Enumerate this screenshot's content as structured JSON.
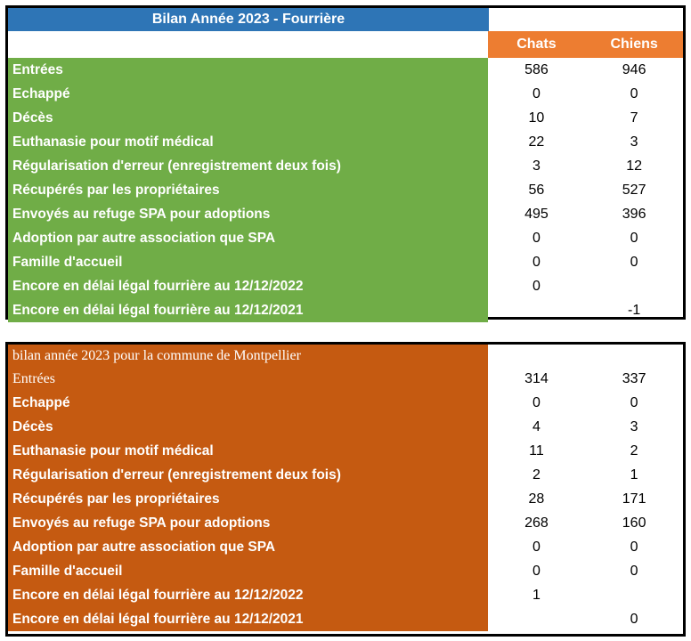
{
  "table1": {
    "title": "Bilan Année 2023 - Fourrière",
    "col_chats": "Chats",
    "col_chiens": "Chiens",
    "rows": [
      {
        "label": "Entrées",
        "chats": "586",
        "chiens": "946"
      },
      {
        "label": "Echappé",
        "chats": "0",
        "chiens": "0"
      },
      {
        "label": "Décès",
        "chats": "10",
        "chiens": "7"
      },
      {
        "label": "Euthanasie pour motif médical",
        "chats": "22",
        "chiens": "3"
      },
      {
        "label": "Régularisation d'erreur (enregistrement deux fois)",
        "chats": "3",
        "chiens": "12"
      },
      {
        "label": "Récupérés par les propriétaires",
        "chats": "56",
        "chiens": "527"
      },
      {
        "label": "Envoyés au refuge SPA pour adoptions",
        "chats": "495",
        "chiens": "396"
      },
      {
        "label": "Adoption par autre association que SPA",
        "chats": "0",
        "chiens": "0"
      },
      {
        "label": "Famille d'accueil",
        "chats": "0",
        "chiens": "0"
      },
      {
        "label": "Encore en délai légal fourrière au 12/12/2022",
        "chats": "0",
        "chiens": ""
      },
      {
        "label": "Encore en délai légal fourrière au 12/12/2021",
        "chats": "",
        "chiens": "-1"
      }
    ]
  },
  "table2": {
    "title": "bilan année 2023 pour la commune de Montpellier",
    "rows": [
      {
        "label": "Entrées",
        "chats": "314",
        "chiens": "337"
      },
      {
        "label": "Echappé",
        "chats": "0",
        "chiens": "0"
      },
      {
        "label": "Décès",
        "chats": "4",
        "chiens": "3"
      },
      {
        "label": "Euthanasie pour motif médical",
        "chats": "11",
        "chiens": "2"
      },
      {
        "label": "Régularisation d'erreur (enregistrement deux fois)",
        "chats": "2",
        "chiens": "1"
      },
      {
        "label": "Récupérés par les propriétaires",
        "chats": "28",
        "chiens": "171"
      },
      {
        "label": "Envoyés au refuge SPA pour adoptions",
        "chats": "268",
        "chiens": "160"
      },
      {
        "label": "Adoption par autre association que SPA",
        "chats": "0",
        "chiens": "0"
      },
      {
        "label": "Famille d'accueil",
        "chats": "0",
        "chiens": "0"
      },
      {
        "label": "Encore en délai légal fourrière au 12/12/2022",
        "chats": "1",
        "chiens": ""
      },
      {
        "label": "Encore en délai légal fourrière au 12/12/2021",
        "chats": "",
        "chiens": "0"
      }
    ]
  },
  "colors": {
    "green": "#70ad47",
    "blue": "#2e75b6",
    "orange_header": "#ed7d31",
    "brown": "#c55a11"
  }
}
